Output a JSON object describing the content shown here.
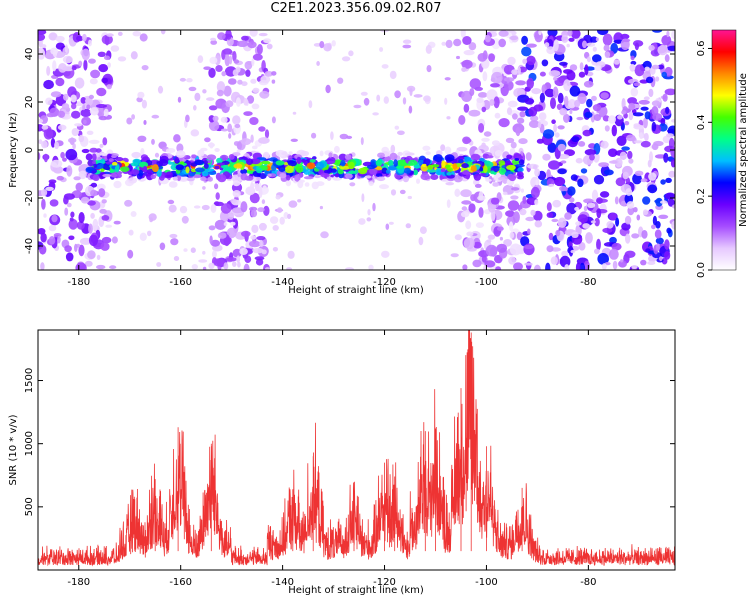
{
  "title": "C2E1.2023.356.09.02.R07",
  "chart_data": [
    {
      "type": "heatmap",
      "xlabel": "Height of straight line (km)",
      "ylabel": "Frequency (Hz)",
      "xlim": [
        -188,
        -63
      ],
      "ylim": [
        -50,
        50
      ],
      "xticks": [
        -180,
        -160,
        -140,
        -120,
        -100,
        -80
      ],
      "yticks": [
        -40,
        -20,
        0,
        20,
        40
      ],
      "colorbar": {
        "label": "Normalized spectral amplitude",
        "range": [
          0.0,
          0.65
        ],
        "ticks": [
          0.0,
          0.2,
          0.4,
          0.6
        ],
        "colormap": [
          "#ffffff",
          "#e6c8ff",
          "#a64dff",
          "#6a00ff",
          "#0000ff",
          "#00bfff",
          "#00ff88",
          "#44ff00",
          "#ffff00",
          "#ff8800",
          "#ff0000",
          "#ff1493"
        ]
      },
      "signal_band": {
        "x_range": [
          -178,
          -93
        ],
        "center_frequency_hz": -7,
        "peak_amplitude": 0.62
      },
      "background_noise_segments": [
        {
          "x_range": [
            -188,
            -174
          ],
          "amplitude": 0.15
        },
        {
          "x_range": [
            -154,
            -143
          ],
          "amplitude": 0.12
        },
        {
          "x_range": [
            -105,
            -93
          ],
          "amplitude": 0.1
        },
        {
          "x_range": [
            -93,
            -63
          ],
          "amplitude": 0.2
        }
      ]
    },
    {
      "type": "line",
      "xlabel": "Height of straight line (km)",
      "ylabel": "SNR (10 * v/v)",
      "xlim": [
        -188,
        -63
      ],
      "ylim": [
        0,
        1900
      ],
      "xticks": [
        -180,
        -160,
        -140,
        -120,
        -100,
        -80
      ],
      "yticks": [
        500,
        1000,
        1500
      ],
      "color": "#ee3333",
      "baseline_snr": 150,
      "peaks": [
        {
          "x": -169,
          "y": 560
        },
        {
          "x": -165,
          "y": 720
        },
        {
          "x": -160.5,
          "y": 1130
        },
        {
          "x": -154,
          "y": 1000
        },
        {
          "x": -138,
          "y": 640
        },
        {
          "x": -134,
          "y": 900
        },
        {
          "x": -126,
          "y": 620
        },
        {
          "x": -120,
          "y": 850
        },
        {
          "x": -118,
          "y": 740
        },
        {
          "x": -112,
          "y": 1100
        },
        {
          "x": -110,
          "y": 1120
        },
        {
          "x": -105,
          "y": 1440
        },
        {
          "x": -103,
          "y": 1880
        },
        {
          "x": -100,
          "y": 980
        },
        {
          "x": -93,
          "y": 650
        }
      ]
    }
  ]
}
